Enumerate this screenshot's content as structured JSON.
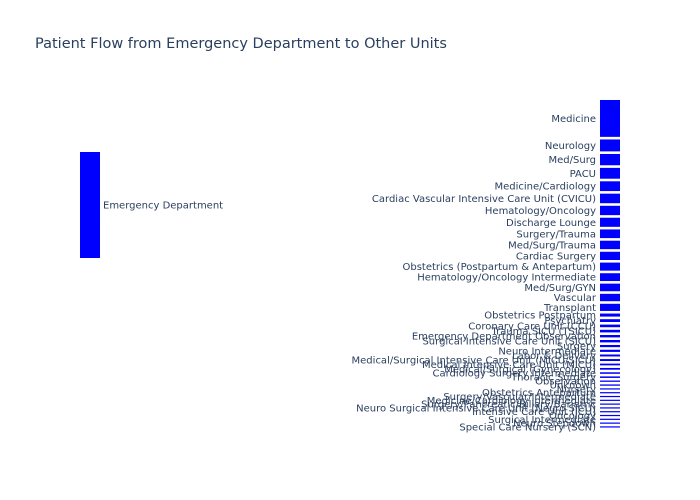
{
  "chart_data": {
    "type": "sankey",
    "title": "Patient Flow from Emergency Department to Other Units",
    "source": "Emergency Department",
    "node_color": "#0000ff",
    "link_color": "#c8c8c8",
    "link_color_small": "#555555",
    "targets": [
      {
        "label": "Medicine",
        "value": 170
      },
      {
        "label": "Neurology",
        "value": 55
      },
      {
        "label": "Med/Surg",
        "value": 52
      },
      {
        "label": "PACU",
        "value": 50
      },
      {
        "label": "Medicine/Cardiology",
        "value": 45
      },
      {
        "label": "Cardiac Vascular Intensive Care Unit (CVICU)",
        "value": 44
      },
      {
        "label": "Hematology/Oncology",
        "value": 43
      },
      {
        "label": "Discharge Lounge",
        "value": 42
      },
      {
        "label": "Surgery/Trauma",
        "value": 40
      },
      {
        "label": "Med/Surg/Trauma",
        "value": 39
      },
      {
        "label": "Cardiac Surgery",
        "value": 38
      },
      {
        "label": "Obstetrics (Postpartum & Antepartum)",
        "value": 37
      },
      {
        "label": "Hematology/Oncology Intermediate",
        "value": 36
      },
      {
        "label": "Med/Surg/GYN",
        "value": 35
      },
      {
        "label": "Vascular",
        "value": 34
      },
      {
        "label": "Transplant",
        "value": 33
      },
      {
        "label": "Obstetrics Postpartum",
        "value": 14
      },
      {
        "label": "Psychiatry",
        "value": 13
      },
      {
        "label": "Coronary Care Unit (CCU)",
        "value": 12
      },
      {
        "label": "Trauma SICU (TSICU)",
        "value": 12
      },
      {
        "label": "Emergency Department Observation",
        "value": 11
      },
      {
        "label": "Surgical Intensive Care Unit (SICU)",
        "value": 11
      },
      {
        "label": "Surgery",
        "value": 10
      },
      {
        "label": "Neuro Intermediate",
        "value": 10
      },
      {
        "label": "Labor & Delivery",
        "value": 9
      },
      {
        "label": "Medical/Surgical Intensive Care Unit (MICU/SICU)",
        "value": 9
      },
      {
        "label": "Medical Intensive Care Unit (MICU)",
        "value": 8
      },
      {
        "label": "Medical/Surgical (Gynecology)",
        "value": 8
      },
      {
        "label": "Cardiology Surgery Intermediate",
        "value": 7
      },
      {
        "label": "Thoracic Surgery",
        "value": 7
      },
      {
        "label": "Observation",
        "value": 6
      },
      {
        "label": "Unknown",
        "value": 6
      },
      {
        "label": "Nursery",
        "value": 5
      },
      {
        "label": "Obstetrics Antepartum",
        "value": 5
      },
      {
        "label": "Surgery/Vascular/Intermediate",
        "value": 5
      },
      {
        "label": "Medicine/Cardiology Intermediate",
        "value": 4
      },
      {
        "label": "Surgery/Pancreatic/Biliary/Bariatric",
        "value": 4
      },
      {
        "label": "Neuro Surgical Intensive Care Unit (Neuro SICU)",
        "value": 4
      },
      {
        "label": "Intensive Care Unit (ICU)",
        "value": 3
      },
      {
        "label": "Oncology",
        "value": 3
      },
      {
        "label": "Surgical Intermediate",
        "value": 3
      },
      {
        "label": "Neuro Stepdown",
        "value": 2
      },
      {
        "label": "Special Care Nursery (SCN)",
        "value": 2
      }
    ]
  }
}
